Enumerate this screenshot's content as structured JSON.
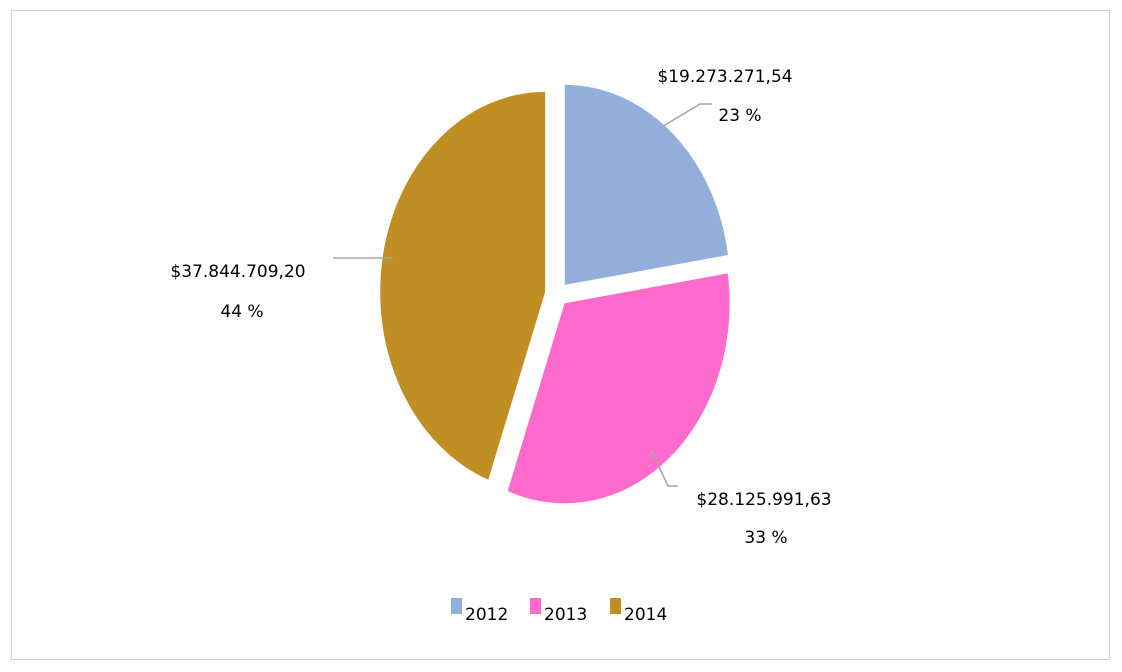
{
  "chart_data": {
    "type": "pie",
    "categories": [
      "2012",
      "2013",
      "2014"
    ],
    "values": [
      19273271.54,
      28125991.63,
      37844709.2
    ],
    "value_labels": [
      "$19.273.271,54",
      "$28.125.991,63",
      "$37.844.709,20"
    ],
    "percent_labels": [
      "23 %",
      "33 %",
      "44 %"
    ],
    "colors": [
      "#94aedb",
      "#ff6bcd",
      "#c08e23"
    ],
    "exploded": true,
    "legend_position": "bottom"
  }
}
